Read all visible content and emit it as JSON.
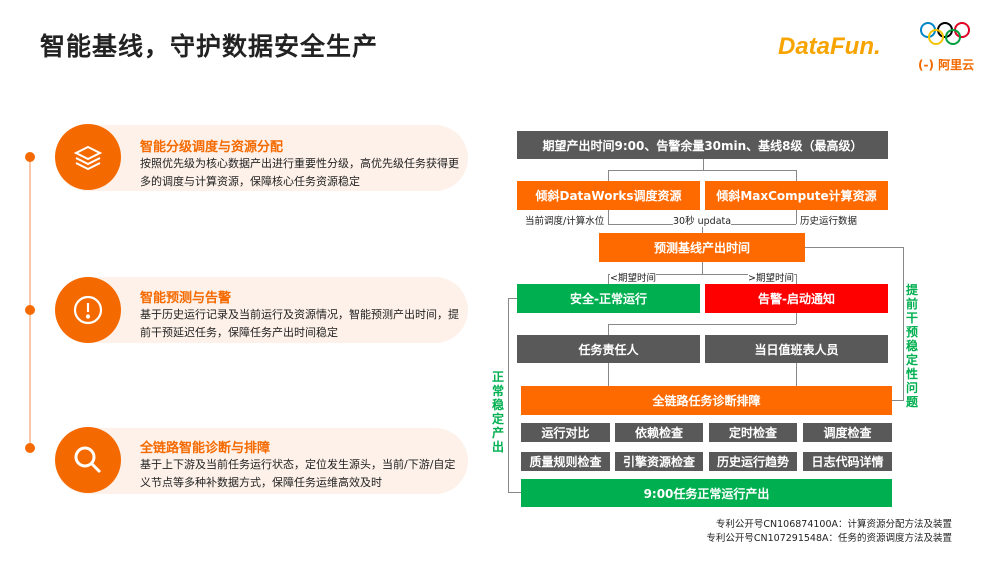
{
  "title": "智能基线，守护数据安全生产",
  "logos": {
    "datafun": "DataFun.",
    "aliyun": "(-) 阿里云"
  },
  "features": [
    {
      "icon": "layers-icon",
      "title": "智能分级调度与资源分配",
      "desc": "按照优先级为核心数据产出进行重要性分级，高优先级任务获得更多的调度与计算资源，保障核心任务资源稳定"
    },
    {
      "icon": "alert-icon",
      "title": "智能预测与告警",
      "desc": "基于历史运行记录及当前运行及资源情况，智能预测产出时间，提前干预延迟任务，保障任务产出时间稳定"
    },
    {
      "icon": "search-icon",
      "title": "全链路智能诊断与排障",
      "desc": "基于上下游及当前任务运行状态，定位发生源头，当前/下游/自定义节点等多种补数据方式，保障任务运维高效及时"
    }
  ],
  "flow": {
    "top": "期望产出时间9:00、告警余量30min、基线8级（最高级）",
    "dataworks": "倾斜DataWorks调度资源",
    "maxcompute": "倾斜MaxCompute计算资源",
    "label_current": "当前调度/计算水位",
    "label_update": "30秒 updata",
    "label_history": "历史运行数据",
    "predict": "预测基线产出时间",
    "label_lt": "<期望时间",
    "label_gt": ">期望时间",
    "safe": "安全-正常运行",
    "alarm": "告警-启动通知",
    "owner": "任务责任人",
    "duty": "当日值班表人员",
    "diagnose": "全链路任务诊断排障",
    "checks": [
      "运行对比",
      "依赖检查",
      "定时检查",
      "调度检查",
      "质量规则检查",
      "引擎资源检查",
      "历史运行趋势",
      "日志代码详情"
    ],
    "output": "9:00任务正常运行产出",
    "left_label": "正常稳定产出",
    "right_label": "提前干预稳定性问题"
  },
  "patents": [
    "专利公开号CN106874100A：计算资源分配方法及装置",
    "专利公开号CN107291548A：任务的资源调度方法及装置"
  ],
  "colors": {
    "orange": "#ff6a00",
    "gray": "#595959",
    "green": "#00b050",
    "red": "#ff0000"
  }
}
